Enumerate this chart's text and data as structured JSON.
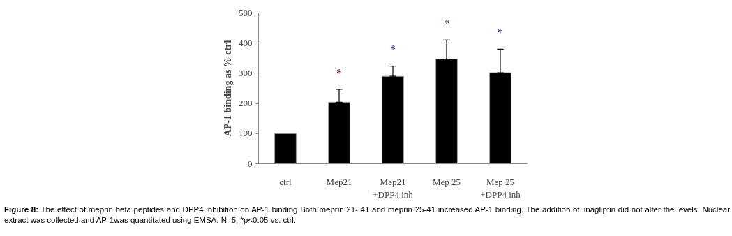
{
  "chart_data": {
    "type": "bar",
    "ylabel": "AP-1 binding as % ctrl",
    "categories": [
      "ctrl",
      "Mep21",
      "Mep21\n+DPP4 inh",
      "Mep 25",
      "Mep 25\n+DPP4 inh"
    ],
    "values": [
      100,
      204,
      290,
      347,
      302
    ],
    "errors": [
      null,
      [
        204,
        247
      ],
      [
        290,
        324
      ],
      [
        347,
        410
      ],
      [
        302,
        380
      ]
    ],
    "color": "#000000",
    "ylim": [
      0,
      500
    ],
    "yticks": [
      0,
      100,
      200,
      300,
      400,
      500
    ],
    "grid": false,
    "annotations": [
      "*",
      "*",
      "*",
      "*",
      "Figure 8:",
      "The effect of meprin beta peptides and DPP4 inhibition on AP-1 binding Both meprin 21- 41 and meprin 25-41 increased AP-1 binding. The addition of linagliptin did not alter the levels. Nuclear extract was collected and AP-1was quantitated using EMSA. N=5, *p<0.05 vs. ctrl."
    ]
  }
}
